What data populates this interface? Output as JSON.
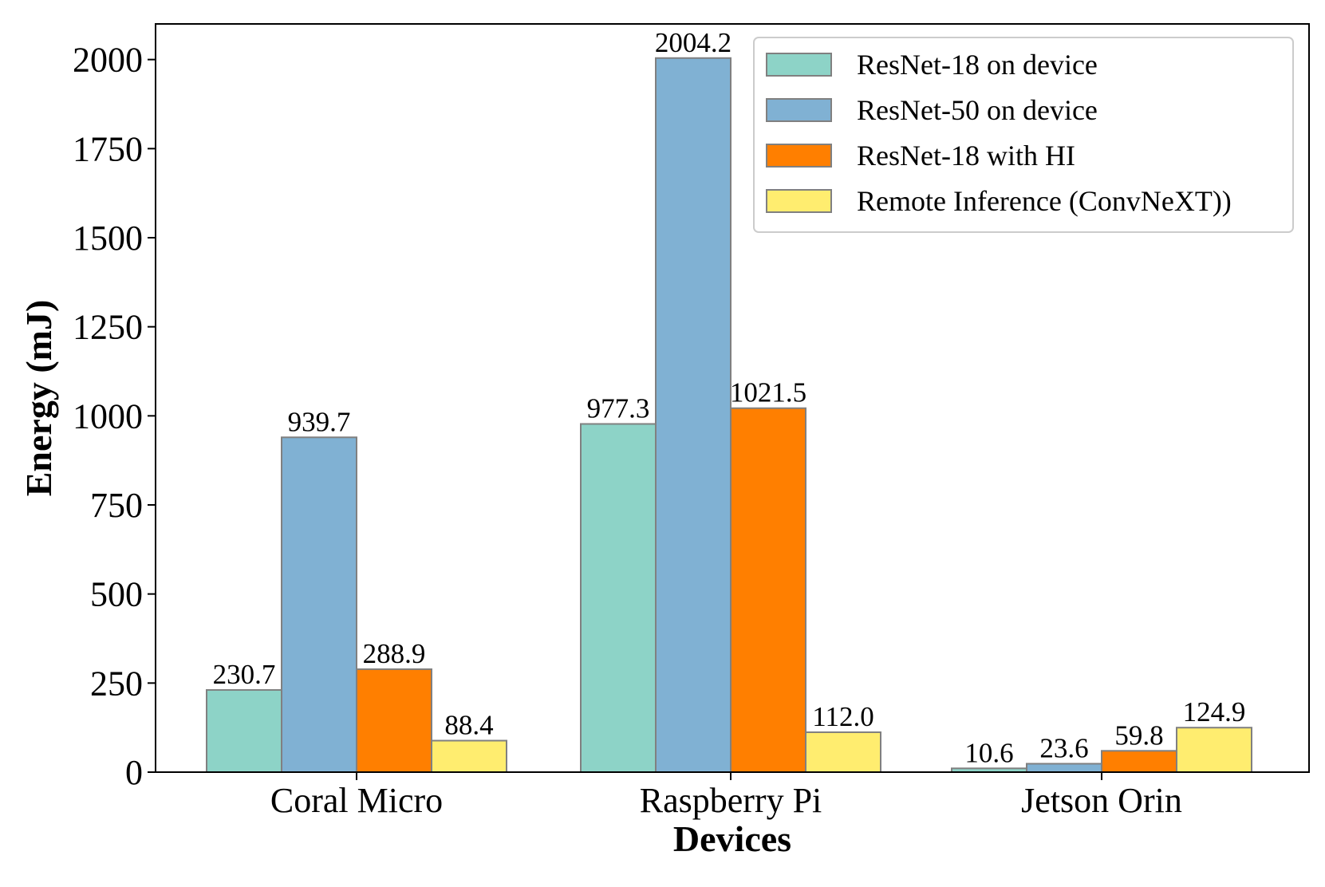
{
  "chart_data": {
    "type": "bar",
    "title": "",
    "xlabel": "Devices",
    "ylabel": "Energy (mJ)",
    "ylim": [
      0,
      2100
    ],
    "yticks": [
      0,
      250,
      500,
      750,
      1000,
      1250,
      1500,
      1750,
      2000
    ],
    "ytick_labels": [
      "0",
      "250",
      "500",
      "750",
      "1000",
      "1250",
      "1500",
      "1750",
      "2000"
    ],
    "categories": [
      "Coral Micro",
      "Raspberry Pi",
      "Jetson Orin"
    ],
    "grid": false,
    "legend_position": "top-right",
    "series": [
      {
        "name": "ResNet-18 on device",
        "color": "#8dd3c7",
        "values": [
          230.7,
          977.3,
          10.6
        ],
        "labels": [
          "230.7",
          "977.3",
          "10.6"
        ]
      },
      {
        "name": "ResNet-50 on device",
        "color": "#80b1d3",
        "values": [
          939.7,
          2004.2,
          23.6
        ],
        "labels": [
          "939.7",
          "2004.2",
          "23.6"
        ]
      },
      {
        "name": "ResNet-18 with HI",
        "color": "#ff7f00",
        "values": [
          288.9,
          1021.5,
          59.8
        ],
        "labels": [
          "288.9",
          "1021.5",
          "59.8"
        ]
      },
      {
        "name": "Remote Inference (ConvNeXT))",
        "color": "#ffed6f",
        "values": [
          88.4,
          112.0,
          124.9
        ],
        "labels": [
          "88.4",
          "112.0",
          "124.9"
        ]
      }
    ],
    "bar_edge_color": "#808080"
  }
}
